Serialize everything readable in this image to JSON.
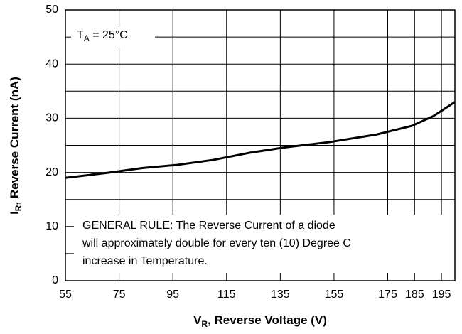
{
  "chart_data": {
    "type": "line",
    "x_label": {
      "main": "V",
      "sub": "R",
      "rest": ", Reverse Voltage (V)"
    },
    "y_label": {
      "main": "I",
      "sub": "R",
      "rest": ", Reverse Current (nA)"
    },
    "annotation": {
      "main": "T",
      "sub": "A",
      "rest": " = 25°C"
    },
    "note": [
      "GENERAL RULE: The Reverse Current of a diode",
      "will approximately double for every ten (10) Degree C",
      "increase in Temperature."
    ],
    "x": [
      55,
      70.3,
      83.6,
      96.8,
      110,
      123.3,
      136.5,
      153.4,
      170.9,
      184,
      192,
      200
    ],
    "series": [
      {
        "color": "#000000",
        "values": [
          19,
          19.9,
          20.8,
          21.4,
          22.3,
          23.6,
          24.6,
          25.6,
          27,
          28.6,
          30.4,
          33
        ]
      }
    ],
    "xlim": [
      55,
      200
    ],
    "xticks": [
      55,
      75,
      95,
      115,
      135,
      155,
      175,
      185,
      195
    ],
    "ylim": [
      0,
      50
    ],
    "yticks": [
      0,
      10,
      20,
      30,
      40,
      50
    ],
    "y_minor_ticks": [
      5,
      15,
      25,
      35,
      45
    ],
    "grid": true
  }
}
